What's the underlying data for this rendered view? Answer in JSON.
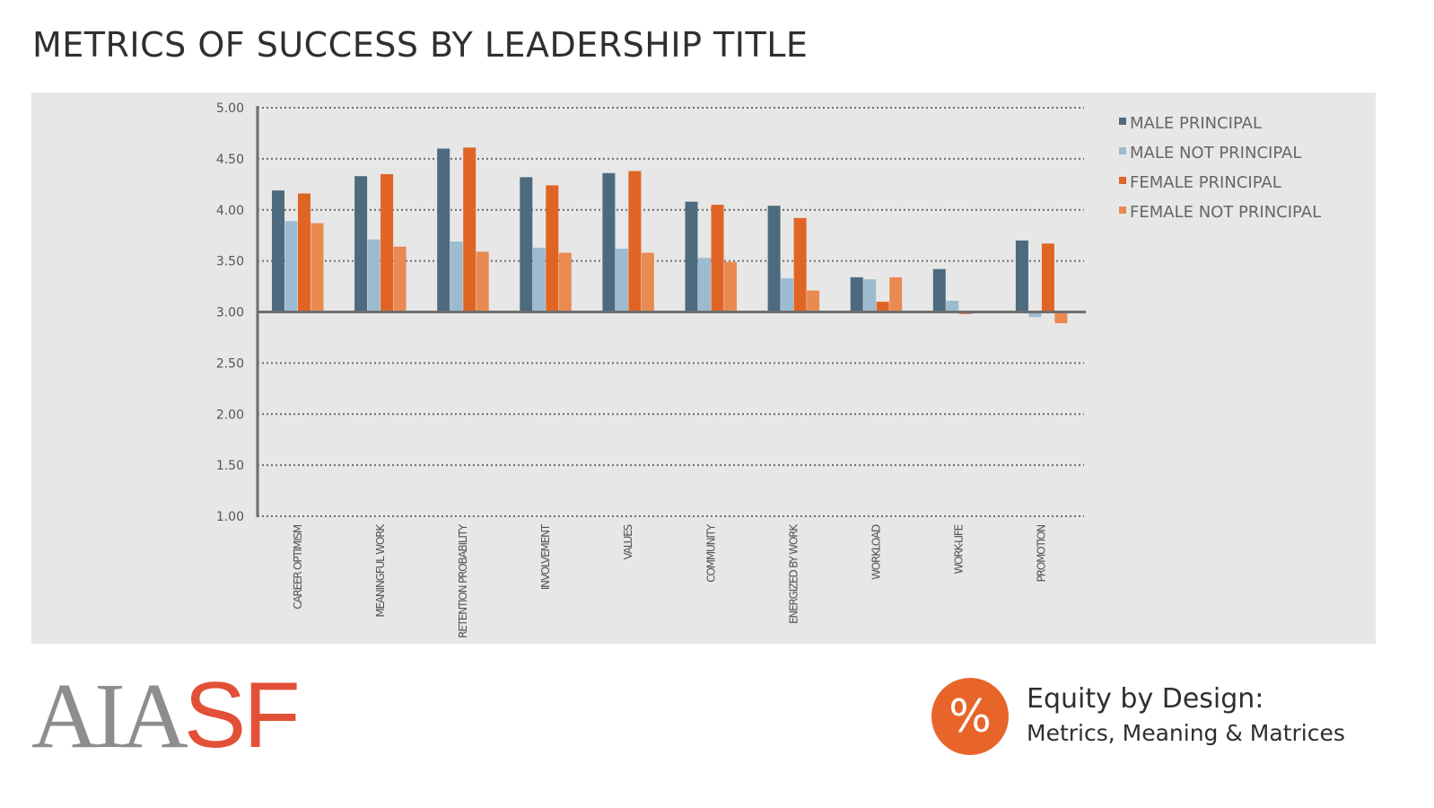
{
  "title": "METRICS OF SUCCESS BY LEADERSHIP TITLE",
  "colors": {
    "panel_bg": "#e7e7e7",
    "male_principal": "#4d6a7e",
    "male_not_principal": "#9dbbd0",
    "female_principal": "#e06524",
    "female_not_principal": "#e88a52",
    "axis": "#6e6e6e",
    "grid": "#6e6e6e",
    "logo_gray": "#8d8d8d",
    "logo_red": "#e25037",
    "brand_orange": "#e8652a"
  },
  "chart_data": {
    "type": "bar",
    "baseline": 3.0,
    "ylim": [
      1.0,
      5.0
    ],
    "yticks": [
      "5.00",
      "4.50",
      "4.00",
      "3.50",
      "3.00",
      "2.50",
      "2.00",
      "1.50",
      "1.00"
    ],
    "grid": true,
    "legend_position": "right",
    "categories": [
      "CAREER OPTIMISM",
      "MEANINGFUL WORK",
      "RETENTION PROBABILITY",
      "INVOLVEMENT",
      "VALUES",
      "COMMUNITY",
      "ENERGIZED BY WORK",
      "WORKLOAD",
      "WORK-LIFE",
      "PROMOTION"
    ],
    "series": [
      {
        "name": "MALE PRINCIPAL",
        "color": "#4d6a7e",
        "values": [
          4.19,
          4.33,
          4.6,
          4.32,
          4.36,
          4.08,
          4.04,
          3.34,
          3.42,
          3.7
        ]
      },
      {
        "name": "MALE NOT PRINCIPAL",
        "color": "#9dbbd0",
        "values": [
          3.89,
          3.71,
          3.69,
          3.63,
          3.62,
          3.53,
          3.33,
          3.32,
          3.11,
          2.95
        ]
      },
      {
        "name": "FEMALE PRINCIPAL",
        "color": "#e06524",
        "values": [
          4.16,
          4.35,
          4.61,
          4.24,
          4.38,
          4.05,
          3.92,
          3.1,
          2.98,
          3.67
        ]
      },
      {
        "name": "FEMALE NOT PRINCIPAL",
        "color": "#e88a52",
        "values": [
          3.87,
          3.64,
          3.59,
          3.58,
          3.58,
          3.49,
          3.21,
          3.34,
          3.0,
          2.89
        ]
      }
    ]
  },
  "logo": {
    "part1": "AIA",
    "part2": "SF"
  },
  "brand": {
    "mark": "%",
    "line1": "Equity by Design:",
    "line2": "Metrics, Meaning & Matrices"
  }
}
